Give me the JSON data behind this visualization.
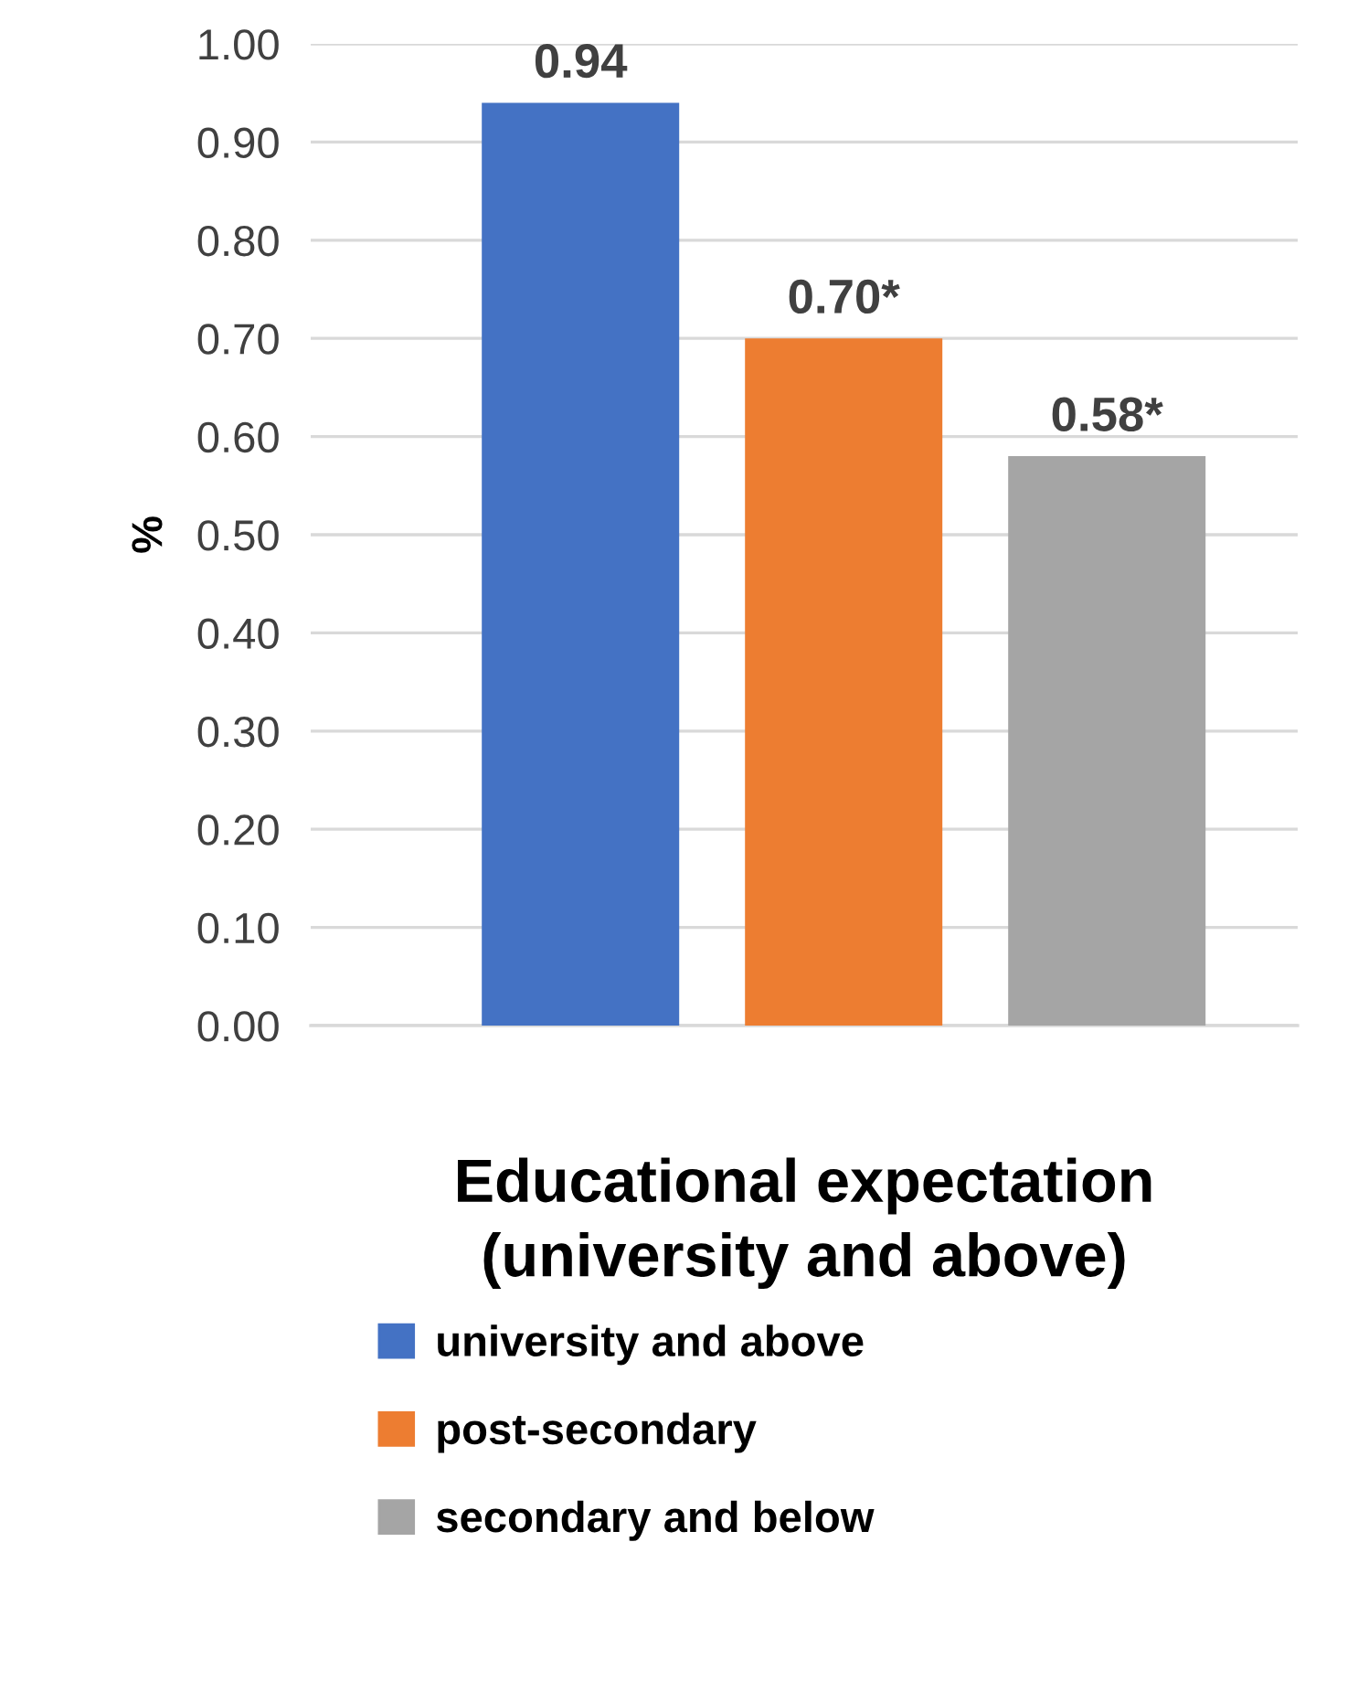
{
  "chart_data": {
    "type": "bar",
    "ylabel": "%",
    "xlabel": "Educational expectation (university and above)",
    "categories": [
      null
    ],
    "series": [
      {
        "name": "university and above",
        "color": "#4472c4",
        "values": [
          0.94
        ],
        "value_labels": [
          "0.94"
        ]
      },
      {
        "name": "post-secondary",
        "color": "#ed7d31",
        "values": [
          0.7
        ],
        "value_labels": [
          "0.70*"
        ]
      },
      {
        "name": "secondary and below",
        "color": "#a5a5a5",
        "values": [
          0.58
        ],
        "value_labels": [
          "0.58*"
        ]
      }
    ],
    "ylim": [
      0,
      1
    ],
    "yticks": [
      {
        "value": 0,
        "label": "0.00"
      },
      {
        "value": 0.1,
        "label": "0.10"
      },
      {
        "value": 0.2,
        "label": "0.20"
      },
      {
        "value": 0.3,
        "label": "0.30"
      },
      {
        "value": 0.4,
        "label": "0.40"
      },
      {
        "value": 0.5,
        "label": "0.50"
      },
      {
        "value": 0.6,
        "label": "0.60"
      },
      {
        "value": 0.7,
        "label": "0.70"
      },
      {
        "value": 0.8,
        "label": "0.80"
      },
      {
        "value": 0.9,
        "label": "0.90"
      },
      {
        "value": 1,
        "label": "1.00"
      }
    ],
    "grid": "y",
    "legend": "bottom"
  }
}
